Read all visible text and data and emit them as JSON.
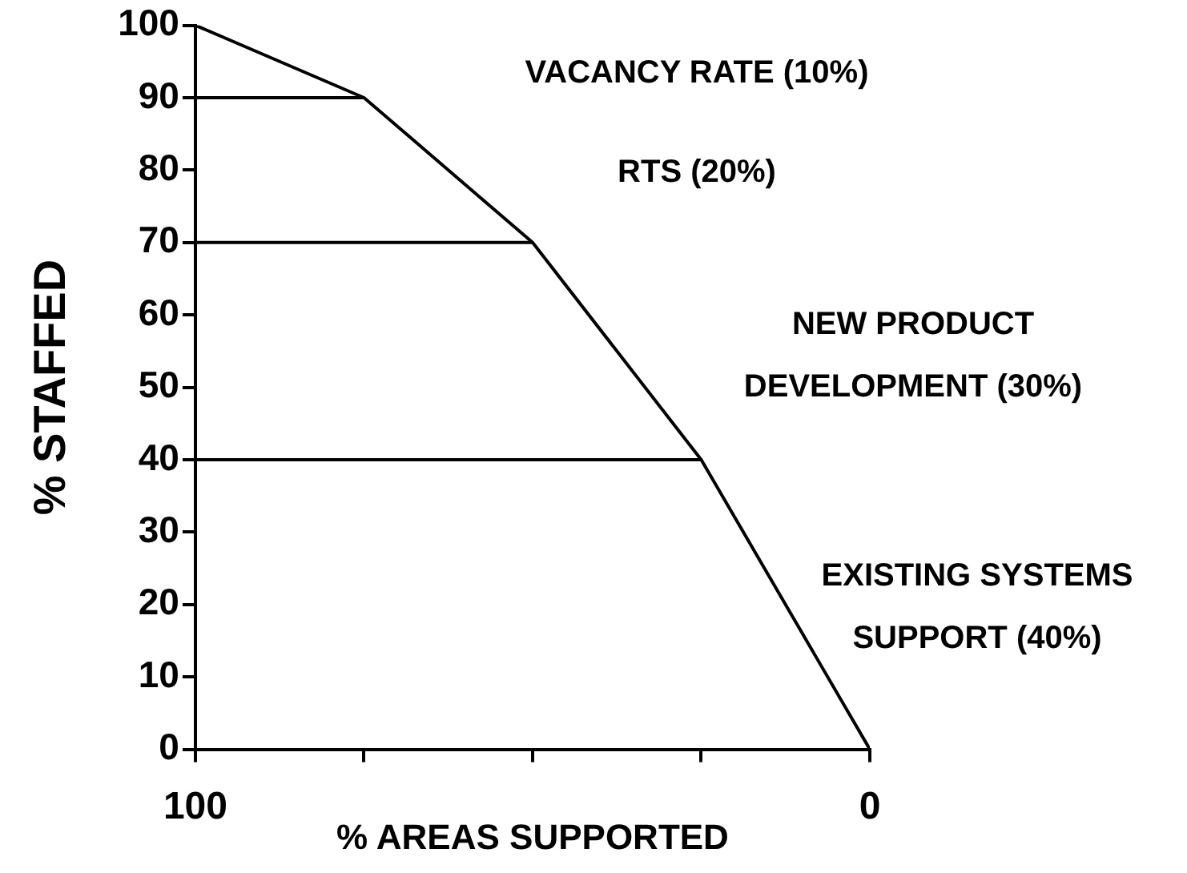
{
  "chart_data": {
    "type": "line",
    "xlabel": "% AREAS SUPPORTED",
    "ylabel": "% STAFFED",
    "xlim": [
      100,
      0
    ],
    "xticks": [
      100,
      {
        "value": 75,
        "label": null
      },
      {
        "value": 50,
        "label": null
      },
      {
        "value": 25,
        "label": null
      },
      0
    ],
    "ylim": [
      0,
      100
    ],
    "yticks": [
      0,
      10,
      20,
      30,
      40,
      50,
      60,
      70,
      80,
      90,
      100
    ],
    "grid": false,
    "legend": false,
    "marker": "none",
    "line_style": "solid",
    "series": [
      {
        "type": "line",
        "color": "#000000",
        "x": [
          100,
          75,
          50,
          25,
          0
        ],
        "values": [
          100,
          90,
          70,
          40,
          0
        ]
      },
      {
        "type": "line",
        "color": "#000000",
        "x": [
          100,
          75
        ],
        "values": [
          90,
          90
        ]
      },
      {
        "type": "line",
        "color": "#000000",
        "x": [
          100,
          50
        ],
        "values": [
          70,
          70
        ]
      },
      {
        "type": "line",
        "color": "#000000",
        "x": [
          100,
          25
        ],
        "values": [
          40,
          40
        ]
      }
    ],
    "annotations": [
      "VACANCY RATE (10%)",
      "RTS (20%)",
      "NEW PRODUCT DEVELOPMENT (30%)",
      "EXISTING SYSTEMS SUPPORT (40%)"
    ]
  }
}
